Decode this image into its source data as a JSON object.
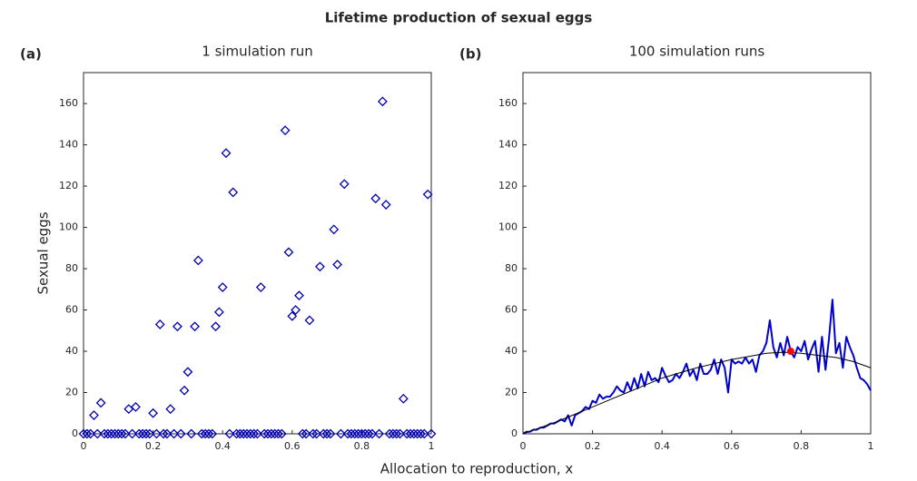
{
  "title": "Lifetime production of sexual eggs",
  "xlabel": "Allocation to reproduction, x",
  "chart_data": [
    {
      "type": "scatter",
      "panel_label": "(a)",
      "title": "1 simulation run",
      "ylabel": "Sexual eggs",
      "color": "#0000b0",
      "x": [
        0,
        0.01,
        0.02,
        0.03,
        0.04,
        0.05,
        0.06,
        0.07,
        0.08,
        0.09,
        0.1,
        0.11,
        0.12,
        0.13,
        0.14,
        0.15,
        0.16,
        0.17,
        0.18,
        0.19,
        0.2,
        0.21,
        0.22,
        0.23,
        0.24,
        0.25,
        0.26,
        0.27,
        0.28,
        0.29,
        0.3,
        0.31,
        0.32,
        0.33,
        0.34,
        0.35,
        0.36,
        0.37,
        0.38,
        0.39,
        0.4,
        0.41,
        0.42,
        0.43,
        0.44,
        0.45,
        0.46,
        0.47,
        0.48,
        0.49,
        0.5,
        0.51,
        0.52,
        0.53,
        0.54,
        0.55,
        0.56,
        0.57,
        0.58,
        0.59,
        0.6,
        0.61,
        0.62,
        0.63,
        0.64,
        0.65,
        0.66,
        0.67,
        0.68,
        0.69,
        0.7,
        0.71,
        0.72,
        0.73,
        0.74,
        0.75,
        0.76,
        0.77,
        0.78,
        0.79,
        0.8,
        0.81,
        0.82,
        0.83,
        0.84,
        0.85,
        0.86,
        0.87,
        0.88,
        0.89,
        0.9,
        0.91,
        0.92,
        0.93,
        0.94,
        0.95,
        0.96,
        0.97,
        0.98,
        0.99,
        1
      ],
      "values": [
        0,
        0,
        0,
        9,
        0,
        15,
        0,
        0,
        0,
        0,
        0,
        0,
        0,
        12,
        0,
        13,
        0,
        0,
        0,
        0,
        10,
        0,
        53,
        0,
        0,
        12,
        0,
        52,
        0,
        21,
        30,
        0,
        52,
        84,
        0,
        0,
        0,
        0,
        52,
        59,
        71,
        136,
        0,
        117,
        0,
        0,
        0,
        0,
        0,
        0,
        0,
        71,
        0,
        0,
        0,
        0,
        0,
        0,
        147,
        88,
        57,
        60,
        67,
        0,
        0,
        55,
        0,
        0,
        81,
        0,
        0,
        0,
        99,
        82,
        0,
        121,
        0,
        0,
        0,
        0,
        0,
        0,
        0,
        0,
        114,
        0,
        161,
        111,
        0,
        0,
        0,
        0,
        17,
        0,
        0,
        0,
        0,
        0,
        0,
        116,
        0
      ],
      "xlim": [
        0,
        1
      ],
      "xticks": [
        0,
        0.2,
        0.4,
        0.6,
        0.8,
        1
      ],
      "ylim": [
        0,
        175
      ],
      "yticks": [
        0,
        20,
        40,
        60,
        80,
        100,
        120,
        140,
        160
      ]
    },
    {
      "type": "line",
      "panel_label": "(b)",
      "title": "100 simulation runs",
      "x": [
        0,
        0.01,
        0.02,
        0.03,
        0.04,
        0.05,
        0.06,
        0.07,
        0.08,
        0.09,
        0.1,
        0.11,
        0.12,
        0.13,
        0.14,
        0.15,
        0.16,
        0.17,
        0.18,
        0.19,
        0.2,
        0.21,
        0.22,
        0.23,
        0.24,
        0.25,
        0.26,
        0.27,
        0.28,
        0.29,
        0.3,
        0.31,
        0.32,
        0.33,
        0.34,
        0.35,
        0.36,
        0.37,
        0.38,
        0.39,
        0.4,
        0.41,
        0.42,
        0.43,
        0.44,
        0.45,
        0.46,
        0.47,
        0.48,
        0.49,
        0.5,
        0.51,
        0.52,
        0.53,
        0.54,
        0.55,
        0.56,
        0.57,
        0.58,
        0.59,
        0.6,
        0.61,
        0.62,
        0.63,
        0.64,
        0.65,
        0.66,
        0.67,
        0.68,
        0.69,
        0.7,
        0.71,
        0.72,
        0.73,
        0.74,
        0.75,
        0.76,
        0.77,
        0.78,
        0.79,
        0.8,
        0.81,
        0.82,
        0.83,
        0.84,
        0.85,
        0.86,
        0.87,
        0.88,
        0.89,
        0.9,
        0.91,
        0.92,
        0.93,
        0.94,
        0.95,
        0.96,
        0.97,
        0.98,
        0.99,
        1
      ],
      "series": [
        {
          "color": "#0000cc",
          "values": [
            0,
            1,
            1,
            2,
            2,
            3,
            3,
            4,
            5,
            5,
            6,
            7,
            6,
            9,
            4,
            9,
            10,
            11,
            13,
            12,
            16,
            15,
            19,
            17,
            18,
            18,
            20,
            23,
            21,
            20,
            25,
            21,
            27,
            22,
            29,
            23,
            30,
            26,
            27,
            25,
            32,
            28,
            25,
            26,
            29,
            27,
            30,
            34,
            28,
            31,
            26,
            34,
            29,
            29,
            31,
            36,
            29,
            36,
            32,
            20,
            36,
            34,
            35,
            34,
            37,
            34,
            36,
            30,
            38,
            40,
            44,
            55,
            42,
            37,
            44,
            38,
            47,
            40,
            37,
            42,
            40,
            45,
            36,
            41,
            45,
            30,
            47,
            31,
            46,
            65,
            39,
            44,
            32,
            47,
            42,
            38,
            32,
            27,
            26,
            24,
            21
          ]
        },
        {
          "color": "#000000",
          "x": [
            0,
            0.05,
            0.1,
            0.15,
            0.2,
            0.25,
            0.3,
            0.35,
            0.4,
            0.45,
            0.5,
            0.55,
            0.6,
            0.65,
            0.7,
            0.75,
            0.8,
            0.85,
            0.9,
            0.95,
            1
          ],
          "values": [
            0,
            3,
            6,
            9.5,
            13,
            16.5,
            20,
            23.5,
            27,
            29.5,
            32,
            34,
            36,
            37.5,
            39,
            39.5,
            39,
            38,
            37,
            35,
            32
          ]
        }
      ],
      "highlight": {
        "x": 0.77,
        "y": 40,
        "color": "#ff0000"
      },
      "xlim": [
        0,
        1
      ],
      "xticks": [
        0,
        0.2,
        0.4,
        0.6,
        0.8,
        1
      ],
      "ylim": [
        0,
        175
      ],
      "yticks": [
        0,
        20,
        40,
        60,
        80,
        100,
        120,
        140,
        160
      ]
    }
  ]
}
